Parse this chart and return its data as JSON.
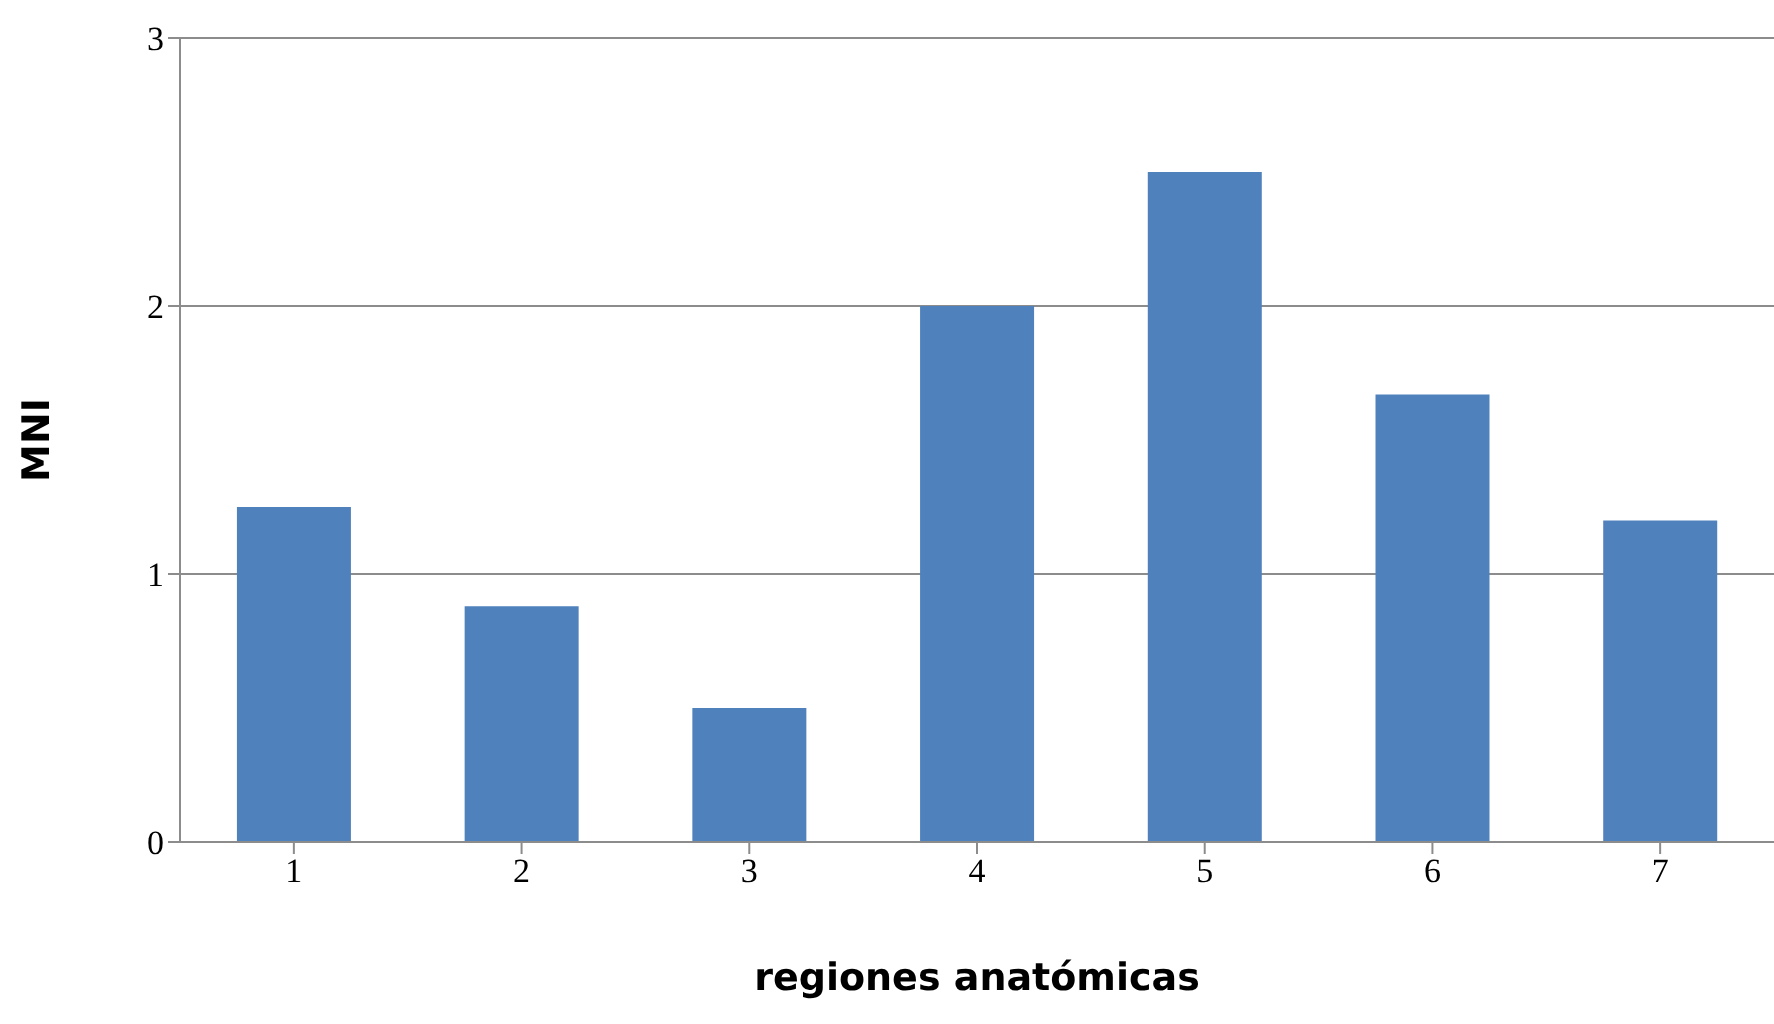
{
  "chart_data": {
    "type": "bar",
    "xlabel": "regiones anatómicas",
    "ylabel": "MNI",
    "categories": [
      "1",
      "2",
      "3",
      "4",
      "5",
      "6",
      "7"
    ],
    "values": [
      1.25,
      0.88,
      0.5,
      2,
      2.5,
      1.67,
      1.2
    ],
    "color": "#4f81bd",
    "ylim": [
      0,
      3
    ],
    "yticks": [
      0,
      1,
      2,
      3
    ],
    "grid": "y"
  }
}
